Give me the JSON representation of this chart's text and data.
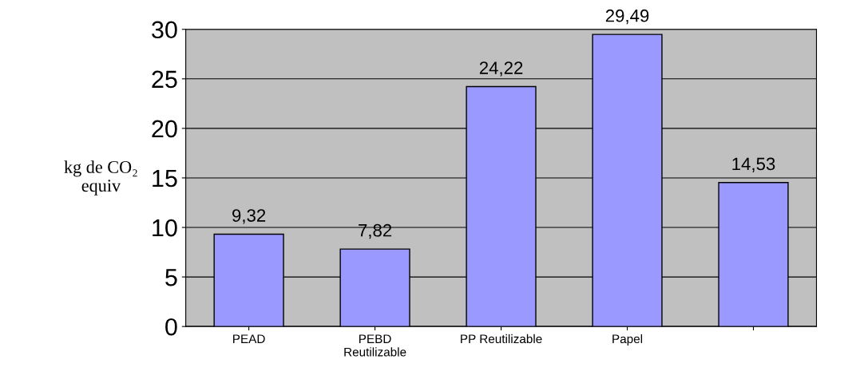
{
  "chart_data": {
    "type": "bar",
    "ylabel": "kg de CO₂\nequiv",
    "categories": [
      "PEAD",
      "PEBD\nReutilizable",
      "PP Reutilizable",
      "Papel",
      null
    ],
    "values": [
      9.32,
      7.82,
      24.22,
      29.49,
      14.53
    ],
    "value_labels": [
      "9,32",
      "7,82",
      "24,22",
      "29,49",
      "14,53"
    ],
    "color": "#9999ff",
    "ylim": [
      0,
      30
    ],
    "yticks": [
      0,
      5,
      10,
      15,
      20,
      25,
      30
    ],
    "grid": "y"
  }
}
